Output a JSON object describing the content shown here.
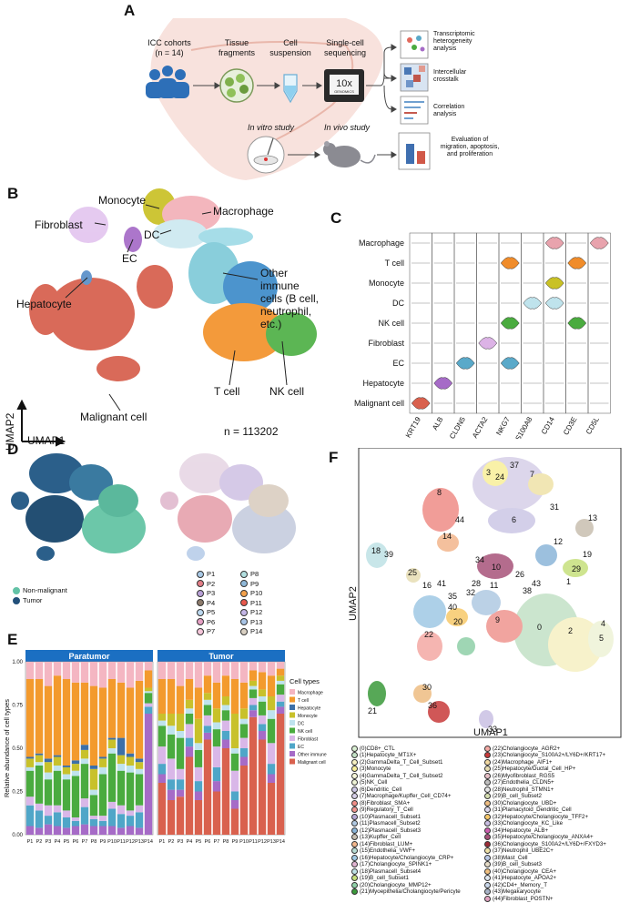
{
  "panel_letters": {
    "a": "A",
    "b": "B",
    "c": "C",
    "d": "D",
    "e": "E",
    "f": "F"
  },
  "panelA": {
    "cohort_line1": "ICC cohorts",
    "cohort_line2": "(n = 14)",
    "tissue_line1": "Tissue",
    "tissue_line2": "fragments",
    "cell_line1": "Cell",
    "cell_line2": "suspension",
    "seq_line1": "Single-cell",
    "seq_line2": "sequencing",
    "tenx": "10x",
    "genomics": "GENOMICS",
    "out1_line1": "Transcriptomic",
    "out1_line2": "heterogeneity",
    "out1_line3": "analysis",
    "out2_line1": "Intercellular",
    "out2_line2": "crosstalk",
    "out3_line1": "Correlation",
    "out3_line2": "analysis",
    "invitro": "In vitro study",
    "invivo": "In vivo study",
    "eval_line1": "Evaluation of",
    "eval_line2": "migration, apoptosis,",
    "eval_line3": "and proliferation"
  },
  "panelB": {
    "labels": {
      "monocyte": "Monocyte",
      "macrophage": "Macrophage",
      "fibroblast": "Fibroblast",
      "dc": "DC",
      "ec": "EC",
      "other1": "Other immune",
      "other2": "cells (B cell,",
      "other3": "neutrophil, etc.)",
      "hepatocyte": "Hepatocyte",
      "malignant": "Malignant cell",
      "tcell": "T cell",
      "nkcell": "NK cell"
    },
    "axis_x": "UMAP1",
    "axis_y": "UMAP2",
    "n_text": "n = 113202"
  },
  "chart_data": [
    {
      "panel": "C",
      "type": "violin",
      "cell_types": [
        "Macrophage",
        "T cell",
        "Monocyte",
        "DC",
        "NK cell",
        "Fibroblast",
        "EC",
        "Hepatocyte",
        "Malignant cell"
      ],
      "genes": [
        "KRT19",
        "ALB",
        "CLDN5",
        "ACTA2",
        "NKG7",
        "S100A8",
        "CD14",
        "CD3E",
        "CD5L"
      ],
      "expressed": [
        {
          "cell": "Macrophage",
          "gene": "CD14",
          "color": "#e8a3ad"
        },
        {
          "cell": "Macrophage",
          "gene": "CD5L",
          "color": "#e8a3ad"
        },
        {
          "cell": "T cell",
          "gene": "NKG7",
          "color": "#f08c2a"
        },
        {
          "cell": "T cell",
          "gene": "CD3E",
          "color": "#f08c2a"
        },
        {
          "cell": "Monocyte",
          "gene": "CD14",
          "color": "#c9c125"
        },
        {
          "cell": "DC",
          "gene": "S100A8",
          "color": "#bfe3ec"
        },
        {
          "cell": "DC",
          "gene": "CD14",
          "color": "#bfe3ec"
        },
        {
          "cell": "NK cell",
          "gene": "NKG7",
          "color": "#4aab3f"
        },
        {
          "cell": "NK cell",
          "gene": "CD3E",
          "color": "#4aab3f"
        },
        {
          "cell": "Fibroblast",
          "gene": "ACTA2",
          "color": "#dcb3e6"
        },
        {
          "cell": "EC",
          "gene": "CLDN5",
          "color": "#5aa9c9"
        },
        {
          "cell": "EC",
          "gene": "NKG7",
          "color": "#5aa9c9"
        },
        {
          "cell": "Hepatocyte",
          "gene": "ALB",
          "color": "#a66bc7"
        },
        {
          "cell": "Malignant cell",
          "gene": "KRT19",
          "color": "#d9614e"
        }
      ]
    },
    {
      "panel": "E",
      "type": "stacked_bar",
      "ylabel": "Relative abundance of cell types",
      "yticks": [
        "0.00",
        "0.25",
        "0.50",
        "0.75",
        "1.00"
      ],
      "ylim": [
        0,
        1
      ],
      "facets": [
        "Paratumor",
        "Tumor"
      ],
      "categories": [
        "P1",
        "P2",
        "P3",
        "P4",
        "P5",
        "P6",
        "P7",
        "P8",
        "P9",
        "P10",
        "P11",
        "P12",
        "P13",
        "P14"
      ],
      "legend_title": "Cell types",
      "series_order": [
        "Malignant cell",
        "Other immune cells",
        "EC",
        "Fibroblast",
        "NK cell",
        "DC",
        "Monocyte",
        "Hepatocyte",
        "T cell",
        "Macrophage"
      ],
      "colors": {
        "Macrophage": "#f4b6c2",
        "T cell": "#f39a2d",
        "Hepatocyte": "#3c6fa8",
        "Monocyte": "#c8c12b",
        "DC": "#bfe3ee",
        "NK cell": "#4aab3f",
        "Fibroblast": "#d9b7e8",
        "EC": "#4fa6c8",
        "Other immune cells": "#a66bc7",
        "Malignant cell": "#d9614e"
      },
      "legend": [
        "Macrophage",
        "T cell",
        "Hepatocyte",
        "Monocyte",
        "DC",
        "NK cell",
        "Fibroblast",
        "EC",
        "Other immune cells",
        "Malignant cell"
      ],
      "paratumor": [
        [
          0.0,
          0.05,
          0.12,
          0.05,
          0.15,
          0.02,
          0.05,
          0.01,
          0.45,
          0.1
        ],
        [
          0.0,
          0.04,
          0.1,
          0.04,
          0.22,
          0.02,
          0.04,
          0.01,
          0.43,
          0.1
        ],
        [
          0.0,
          0.06,
          0.05,
          0.06,
          0.15,
          0.04,
          0.06,
          0.02,
          0.42,
          0.14
        ],
        [
          0.0,
          0.05,
          0.08,
          0.04,
          0.2,
          0.03,
          0.05,
          0.01,
          0.46,
          0.08
        ],
        [
          0.0,
          0.04,
          0.06,
          0.04,
          0.18,
          0.03,
          0.04,
          0.01,
          0.5,
          0.1
        ],
        [
          0.0,
          0.05,
          0.03,
          0.02,
          0.24,
          0.03,
          0.04,
          0.02,
          0.45,
          0.12
        ],
        [
          0.0,
          0.06,
          0.1,
          0.05,
          0.2,
          0.03,
          0.05,
          0.03,
          0.36,
          0.12
        ],
        [
          0.0,
          0.05,
          0.04,
          0.02,
          0.12,
          0.03,
          0.12,
          0.02,
          0.46,
          0.14
        ],
        [
          0.0,
          0.05,
          0.03,
          0.03,
          0.24,
          0.04,
          0.05,
          0.01,
          0.4,
          0.15
        ],
        [
          0.0,
          0.05,
          0.1,
          0.04,
          0.28,
          0.03,
          0.05,
          0.01,
          0.34,
          0.1
        ],
        [
          0.0,
          0.04,
          0.08,
          0.05,
          0.2,
          0.04,
          0.05,
          0.1,
          0.32,
          0.12
        ],
        [
          0.0,
          0.05,
          0.06,
          0.03,
          0.22,
          0.04,
          0.05,
          0.02,
          0.38,
          0.15
        ],
        [
          0.0,
          0.04,
          0.09,
          0.04,
          0.18,
          0.03,
          0.04,
          0.02,
          0.45,
          0.11
        ],
        [
          0.0,
          0.7,
          0.04,
          0.02,
          0.06,
          0.01,
          0.02,
          0.0,
          0.1,
          0.05
        ]
      ],
      "tumor": [
        [
          0.3,
          0.05,
          0.06,
          0.1,
          0.12,
          0.03,
          0.04,
          0.0,
          0.2,
          0.1
        ],
        [
          0.2,
          0.06,
          0.06,
          0.12,
          0.14,
          0.05,
          0.07,
          0.0,
          0.2,
          0.1
        ],
        [
          0.22,
          0.04,
          0.06,
          0.06,
          0.18,
          0.04,
          0.1,
          0.0,
          0.16,
          0.14
        ],
        [
          0.45,
          0.06,
          0.05,
          0.08,
          0.06,
          0.03,
          0.05,
          0.0,
          0.12,
          0.1
        ],
        [
          0.2,
          0.05,
          0.06,
          0.08,
          0.1,
          0.04,
          0.14,
          0.0,
          0.18,
          0.15
        ],
        [
          0.55,
          0.04,
          0.04,
          0.06,
          0.06,
          0.03,
          0.04,
          0.0,
          0.1,
          0.08
        ],
        [
          0.25,
          0.06,
          0.08,
          0.12,
          0.1,
          0.04,
          0.08,
          0.0,
          0.15,
          0.12
        ],
        [
          0.5,
          0.05,
          0.05,
          0.06,
          0.06,
          0.03,
          0.05,
          0.0,
          0.12,
          0.08
        ],
        [
          0.15,
          0.05,
          0.05,
          0.12,
          0.1,
          0.03,
          0.2,
          0.0,
          0.2,
          0.1
        ],
        [
          0.4,
          0.05,
          0.05,
          0.06,
          0.08,
          0.03,
          0.06,
          0.0,
          0.15,
          0.12
        ],
        [
          0.68,
          0.04,
          0.03,
          0.04,
          0.05,
          0.02,
          0.03,
          0.0,
          0.06,
          0.05
        ],
        [
          0.55,
          0.05,
          0.04,
          0.05,
          0.08,
          0.03,
          0.04,
          0.0,
          0.1,
          0.06
        ],
        [
          0.3,
          0.05,
          0.06,
          0.12,
          0.14,
          0.05,
          0.08,
          0.0,
          0.12,
          0.08
        ],
        [
          0.7,
          0.04,
          0.03,
          0.04,
          0.06,
          0.02,
          0.03,
          0.0,
          0.04,
          0.04
        ]
      ]
    }
  ],
  "panelD": {
    "origin_legend": [
      {
        "label": "Non-malignant",
        "color": "#63c2a6"
      },
      {
        "label": "Tumor",
        "color": "#23507a"
      }
    ],
    "patients": [
      {
        "label": "P1",
        "color": "#a9c9e6"
      },
      {
        "label": "P2",
        "color": "#e27d86"
      },
      {
        "label": "P3",
        "color": "#b8a0d6"
      },
      {
        "label": "P4",
        "color": "#8d7b6c"
      },
      {
        "label": "P5",
        "color": "#bcd8ef"
      },
      {
        "label": "P6",
        "color": "#e6a0c4"
      },
      {
        "label": "P7",
        "color": "#f5c6da"
      },
      {
        "label": "P8",
        "color": "#b2dfe0"
      },
      {
        "label": "P9",
        "color": "#8fb8d8"
      },
      {
        "label": "P10",
        "color": "#f3a14b"
      },
      {
        "label": "P11",
        "color": "#e8594c"
      },
      {
        "label": "P12",
        "color": "#c4b6e6"
      },
      {
        "label": "P13",
        "color": "#a8c4e6"
      },
      {
        "label": "P14",
        "color": "#d9d0c2"
      }
    ]
  },
  "panelF": {
    "axis_x": "UMAP1",
    "axis_y": "UMAP2",
    "cluster_numbers": [
      "0",
      "1",
      "2",
      "3",
      "4",
      "5",
      "6",
      "7",
      "8",
      "9",
      "10",
      "11",
      "12",
      "13",
      "14",
      "16",
      "18",
      "19",
      "20",
      "21",
      "22",
      "24",
      "25",
      "26",
      "28",
      "29",
      "30",
      "31",
      "32",
      "33",
      "34",
      "35",
      "36",
      "37",
      "38",
      "39",
      "40",
      "41",
      "43",
      "44"
    ],
    "clusters_left": [
      {
        "label": "(0)CD8+_CTL",
        "color": "#d9efd2"
      },
      {
        "label": "(1)Hepatocyte_MT1X+",
        "color": "#c3e1c6"
      },
      {
        "label": "(2)GammaDelta_T_Cell_Subset1",
        "color": "#f6f0c2"
      },
      {
        "label": "(3)Monocyte",
        "color": "#f8ef9a"
      },
      {
        "label": "(4)GammaDelta_T_Cell_Subset2",
        "color": "#f6f6da"
      },
      {
        "label": "(5)NK_Cell",
        "color": "#eef3d6"
      },
      {
        "label": "(6)Dendritic_Cell",
        "color": "#ccc7e6"
      },
      {
        "label": "(7)Macrophage/Kupffer_Cell_CD74+",
        "color": "#d6cfe8"
      },
      {
        "label": "(8)Fibroblast_SMA+",
        "color": "#ef8d87"
      },
      {
        "label": "(9)Regulatory_T_Cell",
        "color": "#ef958f"
      },
      {
        "label": "(10)Plasmacell_Subset1",
        "color": "#b5a8d6"
      },
      {
        "label": "(11)Plasmacell_Subset2",
        "color": "#b0c9e2"
      },
      {
        "label": "(12)Plasmacell_Subset3",
        "color": "#8bb6d9"
      },
      {
        "label": "(13)Kupffer_Cell",
        "color": "#c8bfb0"
      },
      {
        "label": "(14)Fibroblast_LUM+",
        "color": "#f3b68c"
      },
      {
        "label": "(15)Endothelia_VWF+",
        "color": "#b7dcd4"
      },
      {
        "label": "(16)Hepatocyte/Cholangiocyte_CRP+",
        "color": "#9fc8e4"
      },
      {
        "label": "(17)Cholangiocyte_SPINK1+",
        "color": "#e0b3d1"
      },
      {
        "label": "(18)Plasmacell_Subset4",
        "color": "#bfe2e6"
      },
      {
        "label": "(19)B_cell_Subset1",
        "color": "#c6e07c"
      },
      {
        "label": "(20)Cholangiocyte_MMP12+",
        "color": "#8fd0a8"
      },
      {
        "label": "(21)Myoepithelia/Cholangiocyte/Pericyte",
        "color": "#3a9a3a"
      }
    ],
    "clusters_right": [
      {
        "label": "(22)Cholangiocyte_AGR2+",
        "color": "#f4a9a4"
      },
      {
        "label": "(23)Cholangiocyte_S100A2+/LY6D+/KRT17+",
        "color": "#c83a3a"
      },
      {
        "label": "(24)Macrophage_AIF1+",
        "color": "#f1d9a2"
      },
      {
        "label": "(25)Hepatocyte/Ductal_Cell_HP+",
        "color": "#e7ddb3"
      },
      {
        "label": "(26)Myofibroblast_RGS5",
        "color": "#e8c0c7"
      },
      {
        "label": "(27)Endothelia_CLDN5+",
        "color": "#c0c0c0"
      },
      {
        "label": "(28)Neutrophil_STMN1+",
        "color": "#e6e6e6"
      },
      {
        "label": "(29)B_cell_Subset2",
        "color": "#d6dfb0"
      },
      {
        "label": "(30)Cholangiocyte_UBD+",
        "color": "#eebd82"
      },
      {
        "label": "(31)Plamacytoid_Dendritic_Cell",
        "color": "#ddd8ee"
      },
      {
        "label": "(32)Hepatocyte/Cholangiocyte_TFF2+",
        "color": "#f7c96a"
      },
      {
        "label": "(33)Cholangiocyte_KC_Like",
        "color": "#c9bfe3"
      },
      {
        "label": "(34)Hepatocyte_ALB+",
        "color": "#cf5fb2"
      },
      {
        "label": "(35)Hepatocyte/Cholangiocyte_ANXA4+",
        "color": "#a7537a"
      },
      {
        "label": "(36)Cholangiocyte_S100A2+/LY6D+/FXYD3+",
        "color": "#9c2b36"
      },
      {
        "label": "(37)Neutrophil_UBE2C+",
        "color": "#efe2a8"
      },
      {
        "label": "(38)Mast_Cell",
        "color": "#b9c8e6"
      },
      {
        "label": "(39)B_cell_Subset3",
        "color": "#e6dcc8"
      },
      {
        "label": "(40)Cholangiocyte_CEA+",
        "color": "#f0c080"
      },
      {
        "label": "(41)Hepatocyte_APOA2+",
        "color": "#dfe7ef"
      },
      {
        "label": "(42)CD4+_Memory_T",
        "color": "#c9d7ea"
      },
      {
        "label": "(43)Megakaryocyte",
        "color": "#a9b4c8"
      },
      {
        "label": "(44)Fibroblast_POSTN+",
        "color": "#e2a3c2"
      }
    ]
  }
}
